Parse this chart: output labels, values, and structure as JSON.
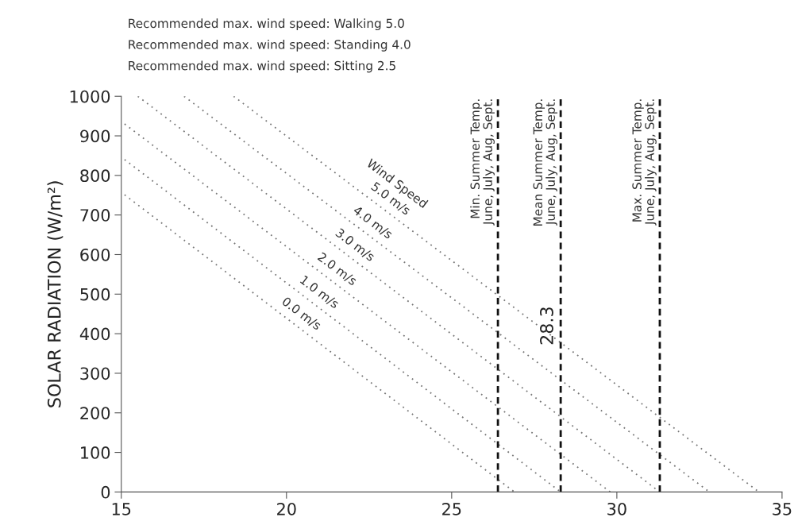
{
  "chart_data": {
    "type": "line",
    "ylabel": "SOLAR RADIATION (W/m²)",
    "xlim": [
      15,
      35
    ],
    "xticks": [
      15,
      20,
      25,
      30,
      35
    ],
    "ylim": [
      0,
      1000
    ],
    "yticks": [
      0,
      100,
      200,
      300,
      400,
      500,
      600,
      700,
      800,
      900,
      1000
    ],
    "grid": false,
    "legend": false,
    "marker": "none",
    "line_style": "dotted",
    "series": [
      {
        "name": "0.0 m/s",
        "color": "#777777",
        "x": [
          15.1,
          26.9
        ],
        "values": [
          751,
          0
        ]
      },
      {
        "name": "1.0 m/s",
        "color": "#777777",
        "x": [
          15.1,
          28.3
        ],
        "values": [
          840,
          0
        ]
      },
      {
        "name": "2.0 m/s",
        "color": "#777777",
        "x": [
          15.1,
          29.8
        ],
        "values": [
          930,
          0
        ]
      },
      {
        "name": "3.0 m/s",
        "color": "#777777",
        "x": [
          15.5,
          31.3
        ],
        "values": [
          1000,
          0
        ]
      },
      {
        "name": "4.0 m/s",
        "color": "#777777",
        "x": [
          16.9,
          32.8
        ],
        "values": [
          1000,
          0
        ]
      },
      {
        "name": "5.0 m/s",
        "color": "#777777",
        "x": [
          18.4,
          34.3
        ],
        "values": [
          1000,
          0
        ]
      }
    ],
    "ref_lines": [
      {
        "axis": "x",
        "value": 26.4,
        "label": "Min. Summer Temp.\nJune, July, Aug, Sept.",
        "color": "#111111",
        "line_style": "dashed"
      },
      {
        "axis": "x",
        "value": 28.3,
        "label": "Mean Summer Temp.\nJune, July, Aug, Sept.",
        "color": "#111111",
        "line_style": "dashed"
      },
      {
        "axis": "x",
        "value": 31.3,
        "label": "Max. Summer Temp.\nJune, July, Aug, Sept.",
        "color": "#111111",
        "line_style": "dashed"
      }
    ],
    "annotations": [
      "Recommended max. wind speed: Walking 5.0",
      "Recommended max. wind speed: Standing 4.0",
      "Recommended max. wind speed: Sitting 2.5",
      "Wind Speed",
      {
        "text": "28.3",
        "x": 28.3,
        "y": 420
      }
    ]
  }
}
